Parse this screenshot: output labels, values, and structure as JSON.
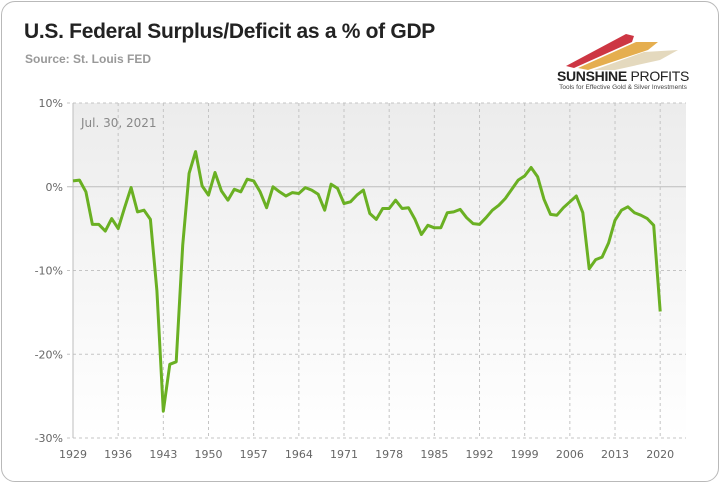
{
  "header": {
    "title": "U.S. Federal Surplus/Deficit as a % of GDP",
    "subtitle": "Source: St. Louis FED"
  },
  "logo": {
    "name_bold": "SUNSHINE",
    "name_light": " PROFITS",
    "tagline": "Tools for Effective Gold & Silver Investments",
    "colors": [
      "#c8202f",
      "#e0a030",
      "#d9c9a0"
    ]
  },
  "chart_data": {
    "type": "line",
    "title": "U.S. Federal Surplus/Deficit as a % of GDP",
    "subtitle": "Source: St. Louis FED",
    "annotation": "Jul. 30, 2021",
    "xlabel": "",
    "ylabel": "",
    "xlim": [
      1929,
      2024
    ],
    "ylim": [
      -30,
      10
    ],
    "x_ticks": [
      "1929",
      "1936",
      "1943",
      "1950",
      "1957",
      "1964",
      "1971",
      "1978",
      "1985",
      "1992",
      "1999",
      "2006",
      "2013",
      "2020"
    ],
    "y_ticks": [
      "10%",
      "0%",
      "-10%",
      "-20%",
      "-30%"
    ],
    "y_tick_values": [
      10,
      0,
      -10,
      -20,
      -30
    ],
    "grid": true,
    "legend": "none",
    "line_color": "#6ab023",
    "series": [
      {
        "name": "Federal Surplus/Deficit (% of GDP)",
        "x": [
          1929,
          1930,
          1931,
          1932,
          1933,
          1934,
          1935,
          1936,
          1937,
          1938,
          1939,
          1940,
          1941,
          1942,
          1943,
          1944,
          1945,
          1946,
          1947,
          1948,
          1949,
          1950,
          1951,
          1952,
          1953,
          1954,
          1955,
          1956,
          1957,
          1958,
          1959,
          1960,
          1961,
          1962,
          1963,
          1964,
          1965,
          1966,
          1967,
          1968,
          1969,
          1970,
          1971,
          1972,
          1973,
          1974,
          1975,
          1976,
          1977,
          1978,
          1979,
          1980,
          1981,
          1982,
          1983,
          1984,
          1985,
          1986,
          1987,
          1988,
          1989,
          1990,
          1991,
          1992,
          1993,
          1994,
          1995,
          1996,
          1997,
          1998,
          1999,
          2000,
          2001,
          2002,
          2003,
          2004,
          2005,
          2006,
          2007,
          2008,
          2009,
          2010,
          2011,
          2012,
          2013,
          2014,
          2015,
          2016,
          2017,
          2018,
          2019,
          2020
        ],
        "values": [
          0.7,
          0.8,
          -0.6,
          -4.5,
          -4.5,
          -5.3,
          -3.8,
          -5.0,
          -2.5,
          -0.1,
          -3.0,
          -2.8,
          -3.9,
          -12.4,
          -26.8,
          -21.2,
          -20.9,
          -7.0,
          1.6,
          4.2,
          0.1,
          -1.0,
          1.7,
          -0.5,
          -1.6,
          -0.3,
          -0.6,
          0.9,
          0.7,
          -0.6,
          -2.5,
          0.0,
          -0.6,
          -1.1,
          -0.7,
          -0.8,
          -0.1,
          -0.4,
          -0.9,
          -2.8,
          0.3,
          -0.2,
          -2.0,
          -1.8,
          -1.0,
          -0.4,
          -3.2,
          -3.9,
          -2.6,
          -2.6,
          -1.6,
          -2.6,
          -2.5,
          -3.9,
          -5.7,
          -4.6,
          -4.9,
          -4.9,
          -3.1,
          -3.0,
          -2.7,
          -3.7,
          -4.4,
          -4.5,
          -3.7,
          -2.8,
          -2.2,
          -1.4,
          -0.3,
          0.8,
          1.3,
          2.3,
          1.2,
          -1.5,
          -3.3,
          -3.4,
          -2.5,
          -1.8,
          -1.1,
          -3.1,
          -9.8,
          -8.7,
          -8.4,
          -6.7,
          -4.0,
          -2.8,
          -2.4,
          -3.1,
          -3.4,
          -3.8,
          -4.6,
          -14.9
        ]
      }
    ]
  }
}
